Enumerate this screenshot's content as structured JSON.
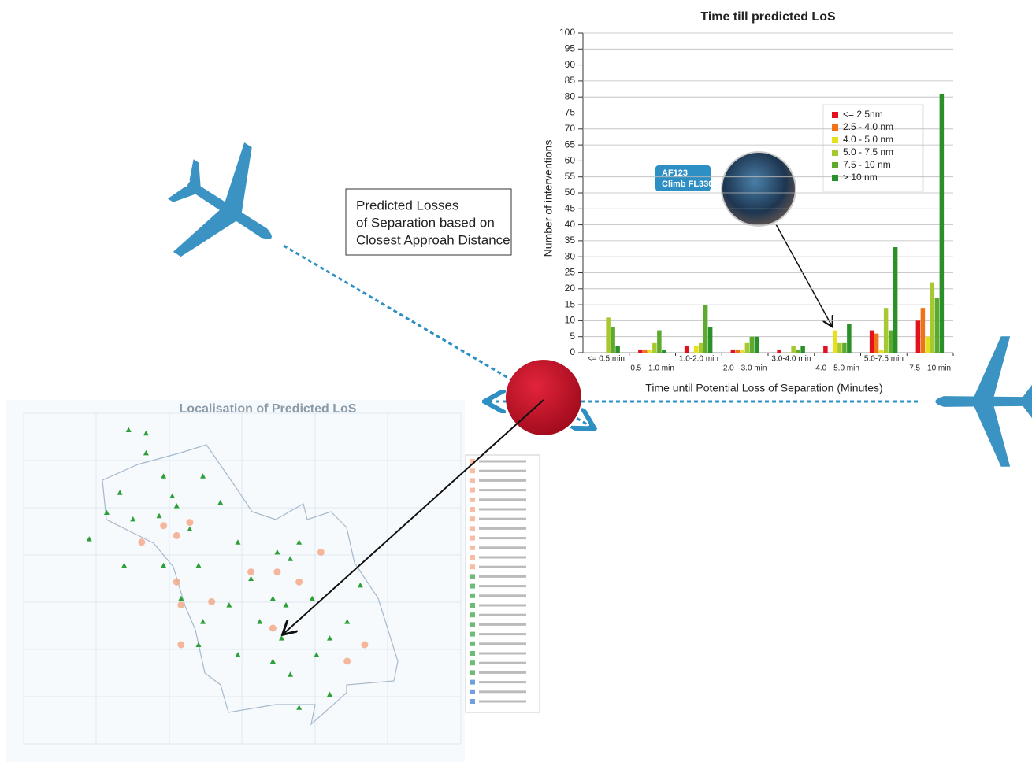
{
  "chart_data": [
    {
      "type": "bar",
      "title": "Time till predicted LoS",
      "y_label": "Number of interventions",
      "x_label": "Time until Potential Loss of Separation (Minutes)",
      "categories": [
        "<= 0.5 min",
        "0.5 - 1.0 min",
        "1.0-2.0 min",
        "2.0 - 3.0 min",
        "3.0-4.0 min",
        "4.0 - 5.0 min",
        "5.0-7.5 min",
        "7.5 - 10 min"
      ],
      "series": [
        {
          "name": "<= 2.5nm",
          "color": "#e3101d",
          "values": [
            0,
            1,
            2,
            1,
            1,
            2,
            7,
            10
          ]
        },
        {
          "name": "2.5 - 4.0 nm",
          "color": "#f07318",
          "values": [
            0,
            1,
            0,
            1,
            0,
            0,
            6,
            14
          ]
        },
        {
          "name": "4.0 - 5.0 nm",
          "color": "#e5e11c",
          "values": [
            0,
            1,
            2,
            1,
            0,
            7,
            1,
            5
          ]
        },
        {
          "name": "5.0 - 7.5 nm",
          "color": "#a6c831",
          "values": [
            11,
            3,
            3,
            3,
            2,
            3,
            14,
            22
          ]
        },
        {
          "name": "7.5 - 10 nm",
          "color": "#5daa2f",
          "values": [
            8,
            7,
            15,
            5,
            1,
            3,
            7,
            17
          ]
        },
        {
          "name": "> 10 nm",
          "color": "#2a9028",
          "values": [
            2,
            1,
            8,
            5,
            2,
            9,
            33,
            81
          ]
        }
      ],
      "ylim": [
        0,
        100
      ],
      "yticks": [
        0,
        5,
        10,
        15,
        20,
        25,
        30,
        35,
        40,
        45,
        50,
        55,
        60,
        65,
        70,
        75,
        80,
        85,
        90,
        95,
        100
      ],
      "grid": true,
      "legend": "right"
    },
    {
      "type": "scatter",
      "title": "Localisation of Predicted LoS",
      "xlim": [
        0,
        100
      ],
      "ylim": [
        0,
        100
      ],
      "series": [
        {
          "color": "#2ea03a",
          "x": [
            24,
            28,
            28,
            32,
            41,
            22,
            34,
            35,
            31,
            19,
            15,
            25,
            38,
            45,
            49,
            32,
            40,
            23,
            36,
            41,
            47,
            52,
            58,
            61,
            63,
            54,
            59,
            67,
            70,
            74,
            77,
            57,
            49,
            40,
            61,
            66,
            63,
            70,
            60,
            57
          ],
          "values": [
            95,
            94,
            88,
            81,
            81,
            76,
            75,
            72,
            69,
            70,
            62,
            68,
            65,
            73,
            61,
            54,
            54,
            54,
            44,
            37,
            42,
            50,
            58,
            56,
            61,
            37,
            32,
            27,
            32,
            37,
            48,
            25,
            27,
            30,
            21,
            44,
            11,
            15,
            42,
            44
          ]
        },
        {
          "color": "#f4a07c",
          "x": [
            32,
            35,
            38,
            27,
            35,
            36,
            52,
            63,
            68,
            57,
            74,
            78,
            36,
            58,
            43
          ],
          "values": [
            66,
            63,
            67,
            61,
            49,
            42,
            52,
            49,
            58,
            35,
            25,
            30,
            30,
            52,
            43
          ]
        }
      ]
    }
  ],
  "annotations": {
    "note": [
      "Predicted Losses",
      "of Separation based on",
      "Closest Approah Distance"
    ],
    "callout": [
      "AF123",
      "Climb FL330"
    ]
  }
}
